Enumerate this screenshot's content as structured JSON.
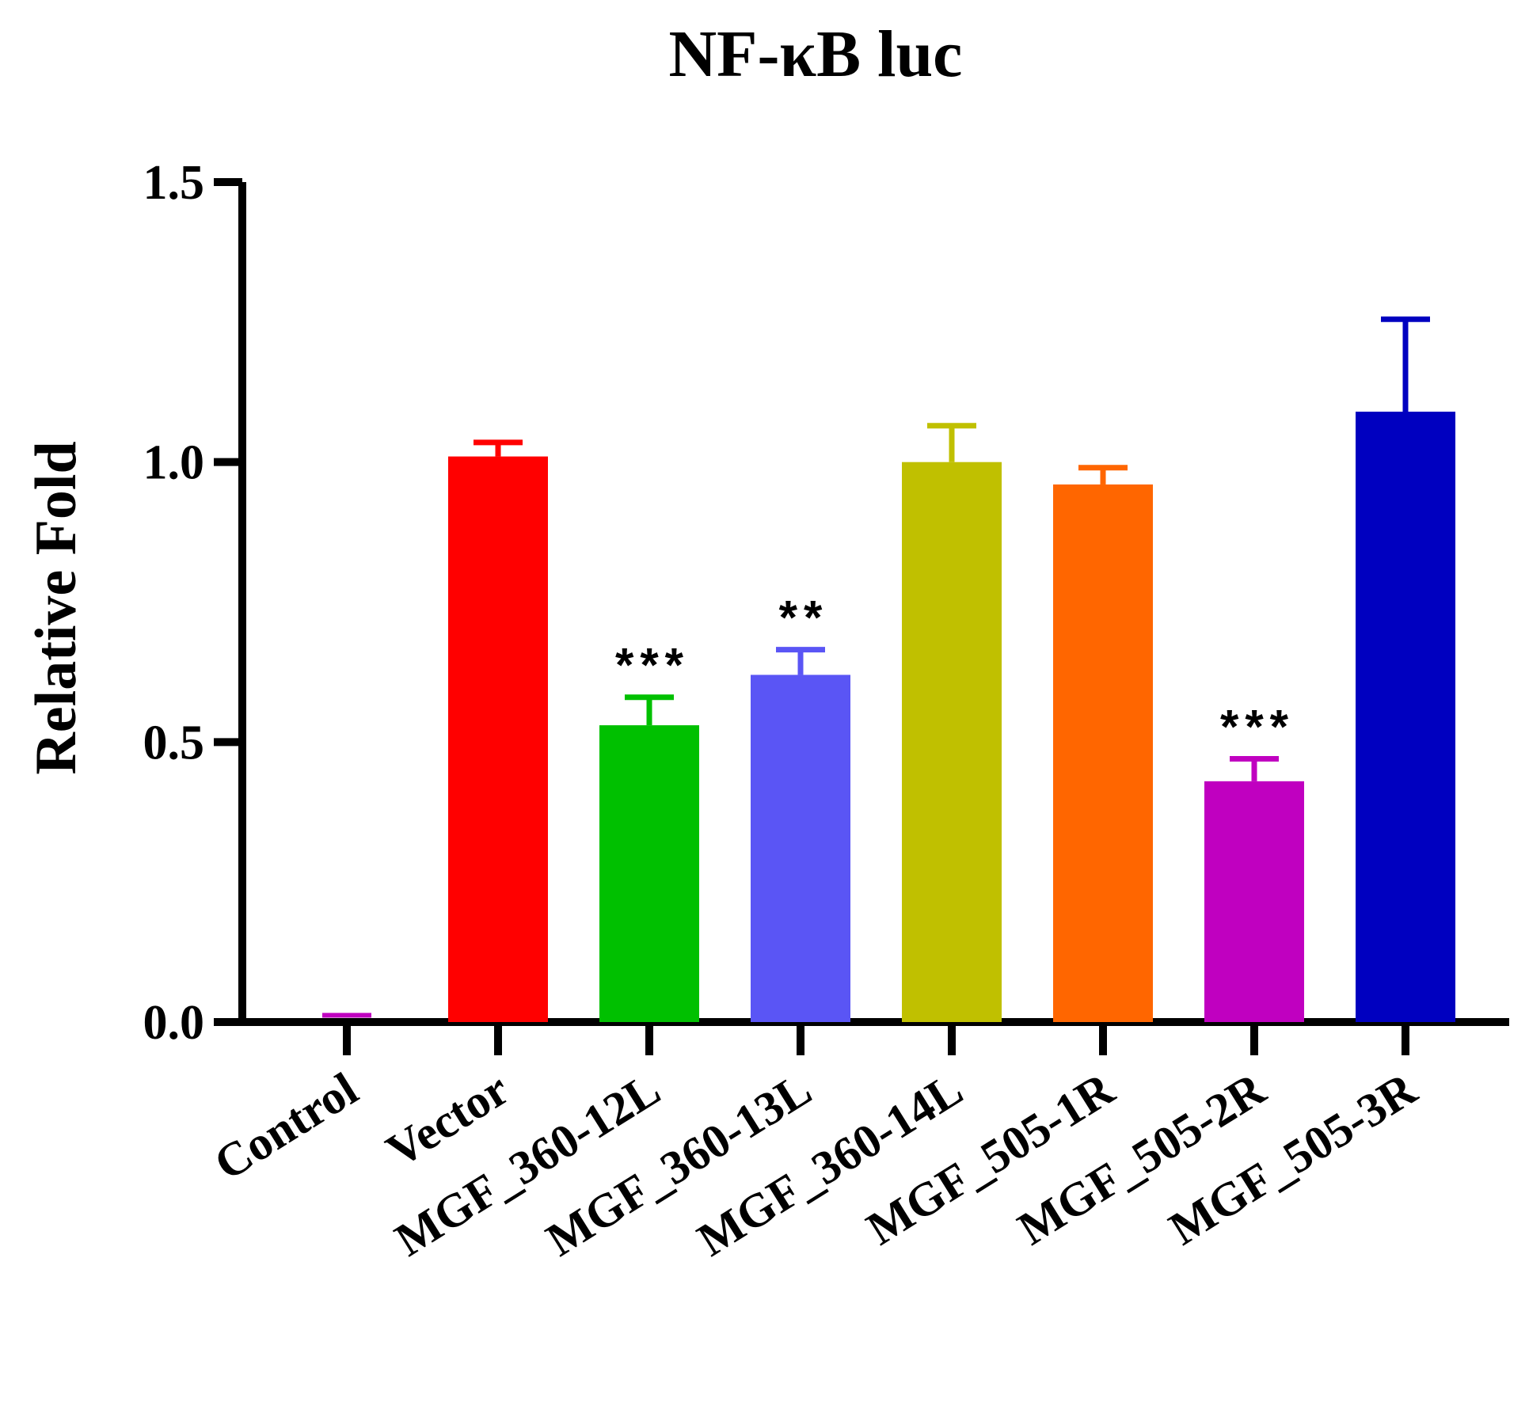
{
  "chart_data": {
    "type": "bar",
    "title": "NF-κB luc",
    "xlabel": "",
    "ylabel": "Relative Fold",
    "ylim": [
      0,
      1.5
    ],
    "yticks": [
      0.0,
      0.5,
      1.0,
      1.5
    ],
    "ytick_labels": [
      "0.0",
      "0.5",
      "1.0",
      "1.5"
    ],
    "grid": false,
    "categories": [
      "Control",
      "Vector",
      "MGF_360-12L",
      "MGF_360-13L",
      "MGF_360-14L",
      "MGF_505-1R",
      "MGF_505-2R",
      "MGF_505-3R"
    ],
    "values": [
      0.005,
      1.01,
      0.53,
      0.62,
      1.0,
      0.96,
      0.43,
      1.09
    ],
    "errors": [
      0.0,
      0.025,
      0.05,
      0.045,
      0.065,
      0.03,
      0.04,
      0.165
    ],
    "significance": [
      "",
      "",
      "***",
      "**",
      "",
      "",
      "***",
      ""
    ],
    "colors": [
      "#c000c0",
      "#ff0000",
      "#00c000",
      "#5a55f5",
      "#c0c000",
      "#ff6600",
      "#c000c0",
      "#0000c0"
    ]
  }
}
